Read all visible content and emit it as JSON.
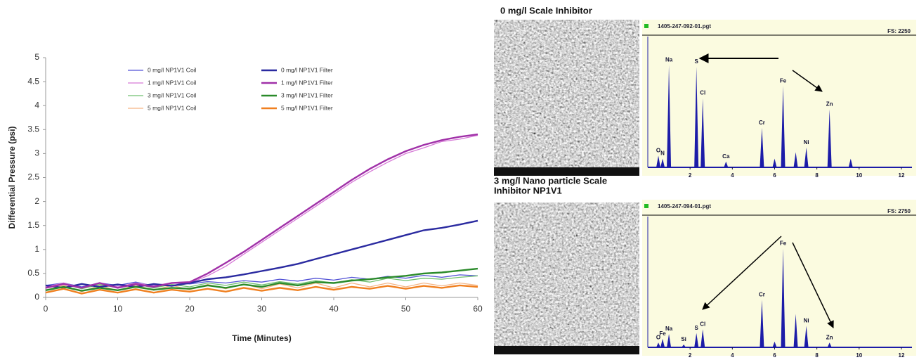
{
  "chart_data": [
    {
      "type": "line",
      "xlabel": "Time (Minutes)",
      "ylabel": "Differential Pressure (psi)",
      "xlim": [
        0,
        60
      ],
      "xticks": [
        0,
        10,
        20,
        30,
        40,
        50,
        60
      ],
      "ylim": [
        0,
        5
      ],
      "yticks": [
        0,
        0.5,
        1,
        1.5,
        2,
        2.5,
        3,
        3.5,
        4,
        4.5,
        5
      ],
      "x": [
        0,
        2.5,
        5,
        7.5,
        10,
        12.5,
        15,
        17.5,
        20,
        22.5,
        25,
        27.5,
        30,
        32.5,
        35,
        37.5,
        40,
        42.5,
        45,
        47.5,
        50,
        52.5,
        55,
        57.5,
        60
      ],
      "series": [
        {
          "name": "0 mg/l NP1V1 Coil",
          "color": "#5252d6",
          "values": [
            0.25,
            0.3,
            0.22,
            0.3,
            0.25,
            0.32,
            0.24,
            0.3,
            0.28,
            0.33,
            0.3,
            0.35,
            0.32,
            0.38,
            0.34,
            0.4,
            0.36,
            0.42,
            0.38,
            0.44,
            0.4,
            0.46,
            0.42,
            0.47,
            0.45
          ]
        },
        {
          "name": "1 mg/l NP1V1 Coil",
          "color": "#d77ad7",
          "values": [
            0.22,
            0.3,
            0.2,
            0.3,
            0.22,
            0.3,
            0.25,
            0.3,
            0.3,
            0.45,
            0.65,
            0.9,
            1.15,
            1.4,
            1.65,
            1.9,
            2.15,
            2.4,
            2.62,
            2.82,
            3.0,
            3.12,
            3.25,
            3.3,
            3.38
          ]
        },
        {
          "name": "3 mg/l NP1V1 Coil",
          "color": "#70c070",
          "values": [
            0.2,
            0.28,
            0.18,
            0.27,
            0.2,
            0.28,
            0.2,
            0.27,
            0.22,
            0.3,
            0.25,
            0.32,
            0.26,
            0.33,
            0.28,
            0.35,
            0.3,
            0.37,
            0.32,
            0.4,
            0.35,
            0.4,
            0.38,
            0.42,
            0.45
          ]
        },
        {
          "name": "5 mg/l NP1V1 Coil",
          "color": "#f5b585",
          "values": [
            0.15,
            0.25,
            0.12,
            0.25,
            0.14,
            0.26,
            0.15,
            0.25,
            0.16,
            0.27,
            0.18,
            0.28,
            0.18,
            0.28,
            0.2,
            0.3,
            0.2,
            0.3,
            0.22,
            0.3,
            0.22,
            0.3,
            0.24,
            0.3,
            0.25
          ]
        },
        {
          "name": "0 mg/l NP1V1 Filter",
          "color": "#2a2aa0",
          "values": [
            0.25,
            0.2,
            0.28,
            0.22,
            0.27,
            0.22,
            0.28,
            0.24,
            0.3,
            0.38,
            0.42,
            0.48,
            0.55,
            0.62,
            0.7,
            0.8,
            0.9,
            1.0,
            1.1,
            1.2,
            1.3,
            1.4,
            1.45,
            1.52,
            1.6
          ]
        },
        {
          "name": "1 mg/l NP1V1 Filter",
          "color": "#a030a8",
          "values": [
            0.2,
            0.28,
            0.2,
            0.3,
            0.2,
            0.28,
            0.22,
            0.3,
            0.32,
            0.5,
            0.72,
            0.95,
            1.2,
            1.45,
            1.7,
            1.95,
            2.2,
            2.45,
            2.68,
            2.88,
            3.05,
            3.18,
            3.28,
            3.35,
            3.4
          ]
        },
        {
          "name": "3 mg/l NP1V1 Filter",
          "color": "#2a8a2a",
          "values": [
            0.15,
            0.22,
            0.14,
            0.2,
            0.15,
            0.22,
            0.16,
            0.2,
            0.18,
            0.25,
            0.2,
            0.27,
            0.22,
            0.3,
            0.25,
            0.32,
            0.3,
            0.35,
            0.38,
            0.42,
            0.45,
            0.5,
            0.52,
            0.56,
            0.6
          ]
        },
        {
          "name": "5 mg/l NP1V1 Filter",
          "color": "#f08020",
          "values": [
            0.1,
            0.18,
            0.08,
            0.16,
            0.1,
            0.17,
            0.1,
            0.16,
            0.12,
            0.18,
            0.12,
            0.2,
            0.14,
            0.2,
            0.15,
            0.22,
            0.16,
            0.22,
            0.18,
            0.24,
            0.18,
            0.24,
            0.2,
            0.25,
            0.22
          ]
        }
      ]
    },
    {
      "type": "spectrum",
      "title": [
        "0 mg/l Scale Inhibitor"
      ],
      "file": "1405-247-092-01.pgt",
      "scale_label": "FS: 2250",
      "color": "#1c1ca8",
      "xlim": [
        0,
        12.5
      ],
      "xticks": [
        2,
        4,
        6,
        8,
        10,
        12
      ],
      "ylim": [
        0,
        2250
      ],
      "x": [
        0.5,
        0.7,
        1.0,
        2.3,
        2.6,
        3.7,
        5.4,
        6.0,
        6.4,
        7.0,
        7.5,
        8.6,
        9.6
      ],
      "values": [
        200,
        150,
        1760,
        1730,
        1190,
        100,
        680,
        150,
        1400,
        260,
        340,
        1000,
        150
      ],
      "labels": [
        "O",
        "N",
        "Na",
        "S",
        "Cl",
        "Ca",
        "Cr",
        null,
        "Fe",
        null,
        "Ni",
        "Zn",
        null
      ]
    },
    {
      "type": "spectrum",
      "title": [
        "3 mg/l Nano particle Scale",
        "Inhibitor NP1V1"
      ],
      "file": "1405-247-094-01.pgt",
      "scale_label": "FS: 2750",
      "color": "#1c1ca8",
      "xlim": [
        0,
        12.5
      ],
      "xticks": [
        2,
        4,
        6,
        8,
        10,
        12
      ],
      "ylim": [
        0,
        2750
      ],
      "x": [
        0.5,
        0.7,
        1.0,
        1.7,
        2.3,
        2.6,
        5.4,
        6.0,
        6.4,
        7.0,
        7.5,
        8.6
      ],
      "values": [
        100,
        180,
        280,
        60,
        300,
        380,
        1000,
        120,
        2080,
        700,
        450,
        100
      ],
      "labels": [
        "O",
        "Fe",
        "Na",
        "Si",
        "S",
        "Cl",
        "Cr",
        null,
        "Fe",
        null,
        "Ni",
        "Zn"
      ]
    }
  ]
}
